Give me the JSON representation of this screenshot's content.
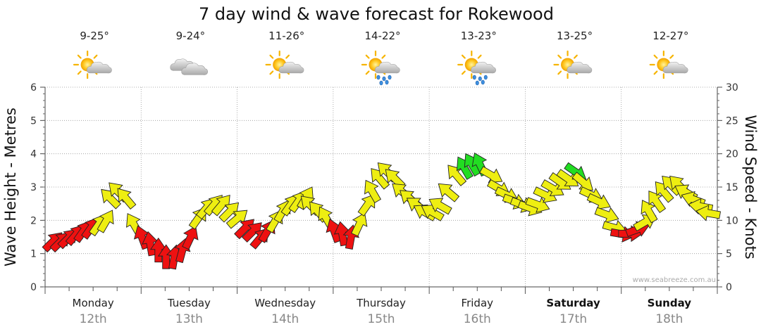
{
  "chart_data": {
    "type": "line",
    "title": "7 day wind & wave forecast for Rokewood",
    "ylabel_left": "Wave Height - Metres",
    "ylabel_right": "Wind Speed - Knots",
    "ylim_left": [
      0,
      6
    ],
    "ylim_right": [
      0,
      30
    ],
    "yticks_left": [
      "0",
      "1",
      "2",
      "3",
      "4",
      "5",
      "6"
    ],
    "yticks_right": [
      "0",
      "5",
      "10",
      "15",
      "20",
      "25",
      "30"
    ],
    "grid": true,
    "credit": "www.seabreeze.com.au",
    "days": [
      {
        "name": "Monday",
        "date": "12th",
        "temp": "9-25°",
        "icon": "partly-cloudy-icon",
        "bold": false
      },
      {
        "name": "Tuesday",
        "date": "13th",
        "temp": "9-24°",
        "icon": "cloudy-icon",
        "bold": false
      },
      {
        "name": "Wednesday",
        "date": "14th",
        "temp": "11-26°",
        "icon": "partly-cloudy-icon",
        "bold": false
      },
      {
        "name": "Thursday",
        "date": "15th",
        "temp": "14-22°",
        "icon": "partly-cloudy-rain-icon",
        "bold": false
      },
      {
        "name": "Friday",
        "date": "16th",
        "temp": "13-23°",
        "icon": "partly-cloudy-rain-icon",
        "bold": false
      },
      {
        "name": "Saturday",
        "date": "17th",
        "temp": "13-25°",
        "icon": "partly-cloudy-icon",
        "bold": true
      },
      {
        "name": "Sunday",
        "date": "18th",
        "temp": "12-27°",
        "icon": "partly-cloudy-icon",
        "bold": true
      }
    ],
    "wind_series": {
      "name": "Wind Speed",
      "unit": "knots",
      "t_days": [
        0.06,
        0.14,
        0.22,
        0.3,
        0.38,
        0.46,
        0.54,
        0.62,
        0.7,
        0.78,
        0.86,
        0.94,
        1.02,
        1.1,
        1.18,
        1.26,
        1.34,
        1.42,
        1.5,
        1.58,
        1.66,
        1.74,
        1.82,
        1.9,
        1.98,
        2.06,
        2.14,
        2.22,
        2.3,
        2.38,
        2.46,
        2.54,
        2.62,
        2.7,
        2.78,
        2.86,
        2.94,
        3.02,
        3.1,
        3.18,
        3.26,
        3.34,
        3.42,
        3.5,
        3.58,
        3.66,
        3.74,
        3.82,
        3.9,
        3.98,
        4.06,
        4.14,
        4.22,
        4.3,
        4.38,
        4.46,
        4.54,
        4.62,
        4.7,
        4.78,
        4.86,
        4.94,
        5.02,
        5.1,
        5.18,
        5.26,
        5.34,
        5.42,
        5.5,
        5.58,
        5.66,
        5.74,
        5.82,
        5.9,
        5.98,
        6.06,
        6.14,
        6.22,
        6.3,
        6.38,
        6.46,
        6.54,
        6.62,
        6.7,
        6.78,
        6.86,
        6.94
      ],
      "values": [
        6.5,
        6.5,
        7,
        7.5,
        8,
        8.5,
        9,
        9.5,
        13,
        14,
        13,
        9,
        7,
        6,
        5,
        4,
        4,
        5,
        7,
        10,
        11.5,
        12,
        12,
        11,
        10,
        8.5,
        8,
        7,
        8,
        9.5,
        11,
        12,
        12.5,
        13,
        12,
        11,
        10,
        8,
        7.5,
        7,
        9,
        12,
        14,
        16,
        17,
        16,
        14,
        13,
        12,
        11,
        11,
        12,
        14,
        16.5,
        17.5,
        18,
        18,
        17,
        15,
        14,
        13,
        12.5,
        12,
        12.5,
        14,
        15,
        16,
        16.5,
        17.5,
        16,
        14,
        13,
        11,
        9,
        8,
        8,
        8.5,
        9.5,
        11,
        12.5,
        14,
        15,
        15,
        14,
        13,
        12,
        11
      ],
      "bearing_deg": [
        45,
        45,
        45,
        40,
        35,
        35,
        35,
        30,
        315,
        315,
        320,
        330,
        340,
        350,
        0,
        0,
        10,
        15,
        25,
        35,
        40,
        40,
        40,
        45,
        50,
        45,
        45,
        40,
        30,
        30,
        30,
        35,
        35,
        30,
        315,
        320,
        330,
        340,
        350,
        10,
        25,
        35,
        330,
        320,
        315,
        315,
        310,
        310,
        305,
        300,
        300,
        300,
        310,
        320,
        330,
        330,
        335,
        120,
        120,
        115,
        110,
        110,
        110,
        110,
        115,
        120,
        125,
        125,
        125,
        130,
        115,
        115,
        110,
        105,
        100,
        90,
        70,
        60,
        330,
        325,
        320,
        315,
        315,
        300,
        290,
        280,
        280
      ]
    }
  }
}
